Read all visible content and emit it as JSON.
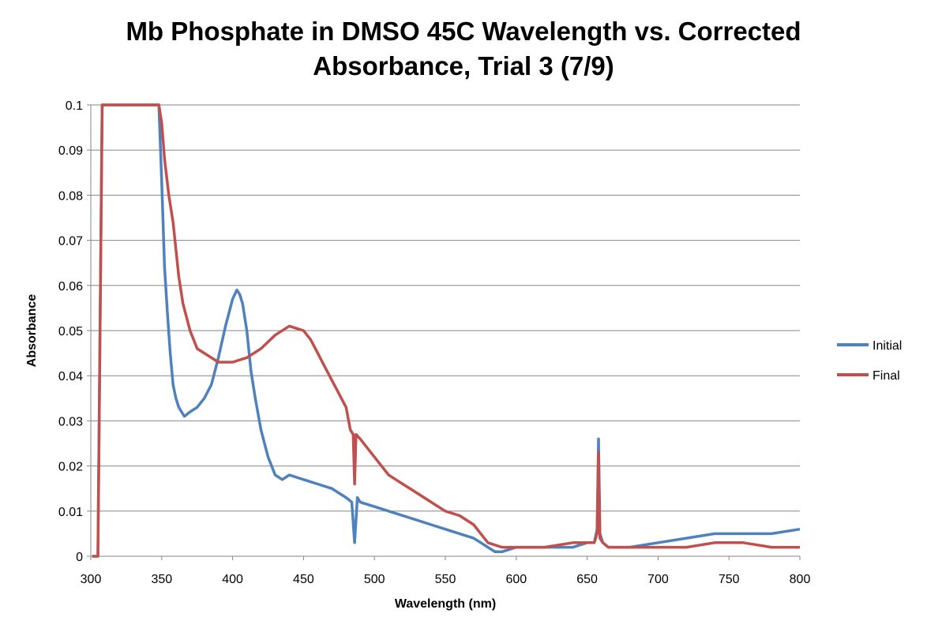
{
  "chart_data": {
    "type": "line",
    "title_line1": "Mb Phosphate in DMSO 45C Wavelength vs. Corrected",
    "title_line2": "Absorbance, Trial 3 (7/9)",
    "xlabel": "Wavelength (nm)",
    "ylabel": "Absorbance",
    "xlim": [
      300,
      800
    ],
    "ylim": [
      0,
      0.1
    ],
    "x_ticks": [
      "300",
      "350",
      "400",
      "450",
      "500",
      "550",
      "600",
      "650",
      "700",
      "750",
      "800"
    ],
    "y_ticks": [
      "0",
      "0.01",
      "0.02",
      "0.03",
      "0.04",
      "0.05",
      "0.06",
      "0.07",
      "0.08",
      "0.09",
      "0.1"
    ],
    "grid": "horizontal",
    "legend_position": "right",
    "series": [
      {
        "name": "Initial",
        "color": "#4F81BD",
        "x": [
          301,
          303,
          305,
          308,
          310,
          312,
          315,
          318,
          320,
          323,
          326,
          330,
          335,
          340,
          345,
          347,
          348,
          350,
          352,
          354,
          356,
          358,
          360,
          362,
          364,
          366,
          370,
          375,
          380,
          385,
          390,
          395,
          400,
          403,
          405,
          407,
          410,
          413,
          416,
          420,
          425,
          430,
          435,
          440,
          450,
          460,
          470,
          480,
          484,
          486,
          488,
          490,
          500,
          510,
          520,
          530,
          540,
          550,
          560,
          570,
          575,
          580,
          585,
          590,
          600,
          620,
          640,
          650,
          655,
          657,
          658,
          659,
          661,
          665,
          680,
          700,
          720,
          740,
          760,
          780,
          800
        ],
        "y": [
          0.0,
          0.0,
          0.0,
          0.1,
          0.1,
          0.1,
          0.1,
          0.1,
          0.1,
          0.1,
          0.1,
          0.1,
          0.1,
          0.1,
          0.1,
          0.1,
          0.1,
          0.083,
          0.064,
          0.054,
          0.045,
          0.038,
          0.035,
          0.033,
          0.032,
          0.031,
          0.032,
          0.033,
          0.035,
          0.038,
          0.044,
          0.051,
          0.057,
          0.059,
          0.058,
          0.056,
          0.05,
          0.041,
          0.035,
          0.028,
          0.022,
          0.018,
          0.017,
          0.018,
          0.017,
          0.016,
          0.015,
          0.013,
          0.012,
          0.003,
          0.013,
          0.012,
          0.011,
          0.01,
          0.009,
          0.008,
          0.007,
          0.006,
          0.005,
          0.004,
          0.003,
          0.002,
          0.001,
          0.001,
          0.002,
          0.002,
          0.002,
          0.003,
          0.003,
          0.006,
          0.026,
          0.005,
          0.003,
          0.002,
          0.002,
          0.003,
          0.004,
          0.005,
          0.005,
          0.005,
          0.006
        ]
      },
      {
        "name": "Final",
        "color": "#C0504D",
        "x": [
          301,
          303,
          305,
          308,
          310,
          312,
          315,
          318,
          320,
          323,
          326,
          330,
          335,
          340,
          345,
          347,
          348,
          350,
          352,
          355,
          358,
          360,
          362,
          365,
          370,
          375,
          380,
          390,
          400,
          410,
          420,
          430,
          440,
          450,
          455,
          460,
          465,
          470,
          475,
          480,
          483,
          485,
          486,
          487,
          490,
          500,
          510,
          520,
          530,
          540,
          550,
          560,
          570,
          575,
          580,
          590,
          600,
          620,
          640,
          650,
          655,
          657,
          658,
          659,
          661,
          665,
          680,
          700,
          720,
          740,
          760,
          780,
          800
        ],
        "y": [
          0.0,
          0.0,
          0.0,
          0.1,
          0.1,
          0.1,
          0.1,
          0.1,
          0.1,
          0.1,
          0.1,
          0.1,
          0.1,
          0.1,
          0.1,
          0.1,
          0.1,
          0.096,
          0.088,
          0.08,
          0.074,
          0.068,
          0.062,
          0.056,
          0.05,
          0.046,
          0.045,
          0.043,
          0.043,
          0.044,
          0.046,
          0.049,
          0.051,
          0.05,
          0.048,
          0.045,
          0.042,
          0.039,
          0.036,
          0.033,
          0.028,
          0.027,
          0.016,
          0.027,
          0.026,
          0.022,
          0.018,
          0.016,
          0.014,
          0.012,
          0.01,
          0.009,
          0.007,
          0.005,
          0.003,
          0.002,
          0.002,
          0.002,
          0.003,
          0.003,
          0.003,
          0.005,
          0.023,
          0.004,
          0.003,
          0.002,
          0.002,
          0.002,
          0.002,
          0.003,
          0.003,
          0.002,
          0.002
        ]
      }
    ]
  }
}
